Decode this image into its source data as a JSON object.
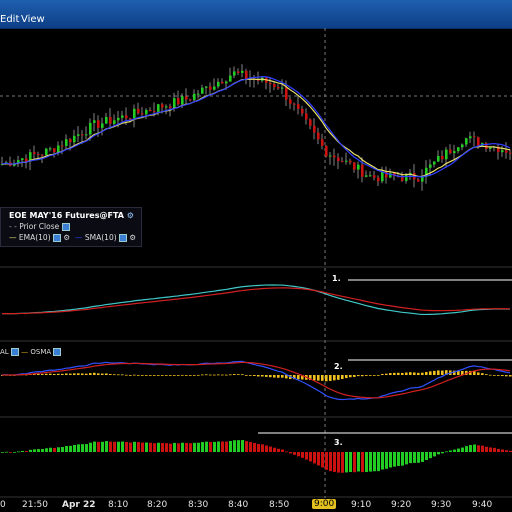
{
  "menu": {
    "items": [
      "Edit",
      "View"
    ]
  },
  "legend": {
    "title": "EOE MAY'16 Futures@FTA",
    "prior_close": "Prior Close",
    "ema": "EMA(10)",
    "sma": "SMA(10)"
  },
  "panels": {
    "label1": "1.",
    "label2": "2.",
    "label3": "3."
  },
  "indicator_legend": {
    "signal": "AL",
    "osma": "OSMA"
  },
  "xaxis": {
    "ticks": [
      "0",
      "21:50",
      "Apr 22",
      "8:10",
      "8:20",
      "8:30",
      "8:40",
      "8:50",
      "9:00",
      "9:10",
      "9:20",
      "9:30",
      "9:40"
    ]
  },
  "colors": {
    "up": "#22cc22",
    "down": "#cc1111",
    "ema": "#e8e06a",
    "sma": "#3040ff",
    "line_cyan": "#40c8c8",
    "line_red": "#d02020",
    "osma": "#f0c020",
    "macd_blue": "#3050ff"
  },
  "chart_data": {
    "type": "candlestick",
    "x": [
      "21:50",
      "Apr 22",
      "8:10",
      "8:20",
      "8:30",
      "8:40",
      "8:50",
      "9:00",
      "9:10",
      "9:20",
      "9:30",
      "9:40"
    ],
    "close": [
      3,
      4,
      6,
      7,
      8,
      10,
      9,
      4,
      2,
      2,
      5,
      4
    ]
  }
}
